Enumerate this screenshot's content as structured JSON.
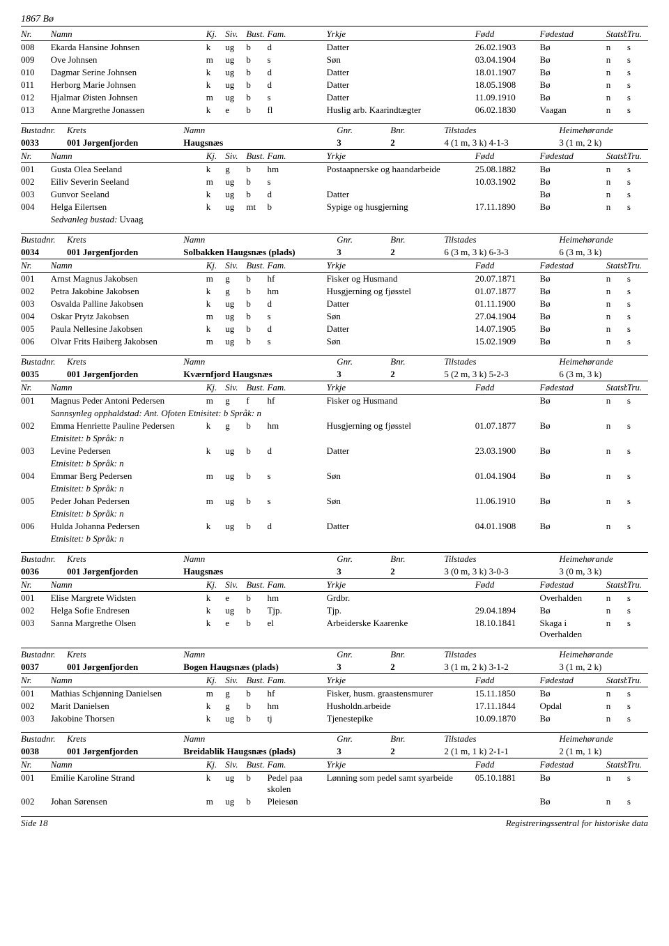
{
  "title": "1867 Bø",
  "footer_left": "Side 18",
  "footer_right": "Registreringssentral for historiske data",
  "colhead": {
    "nr": "Nr.",
    "namn": "Namn",
    "kj": "Kj.",
    "siv": "Siv.",
    "bust": "Bust.",
    "fam": "Fam.",
    "yrkje": "Yrkje",
    "fodd": "Fødd",
    "fodestad": "Fødestad",
    "statsb": "Statsb.",
    "tru": "Tru."
  },
  "busthead": {
    "bustadnr": "Bustadnr.",
    "krets": "Krets",
    "namn": "Namn",
    "gnr": "Gnr.",
    "bnr": "Bnr.",
    "tilstades": "Tilstades",
    "heimehor": "Heimehørande"
  },
  "top_rows": [
    {
      "nr": "008",
      "namn": "Ekarda Hansine Johnsen",
      "kj": "k",
      "siv": "ug",
      "bust": "b",
      "fam": "d",
      "yrkje": "Datter",
      "fodd": "26.02.1903",
      "fstad": "Bø",
      "stat": "n",
      "tru": "s"
    },
    {
      "nr": "009",
      "namn": "Ove Johnsen",
      "kj": "m",
      "siv": "ug",
      "bust": "b",
      "fam": "s",
      "yrkje": "Søn",
      "fodd": "03.04.1904",
      "fstad": "Bø",
      "stat": "n",
      "tru": "s"
    },
    {
      "nr": "010",
      "namn": "Dagmar Serine Johnsen",
      "kj": "k",
      "siv": "ug",
      "bust": "b",
      "fam": "d",
      "yrkje": "Datter",
      "fodd": "18.01.1907",
      "fstad": "Bø",
      "stat": "n",
      "tru": "s"
    },
    {
      "nr": "011",
      "namn": "Herborg Marie Johnsen",
      "kj": "k",
      "siv": "ug",
      "bust": "b",
      "fam": "d",
      "yrkje": "Datter",
      "fodd": "18.05.1908",
      "fstad": "Bø",
      "stat": "n",
      "tru": "s"
    },
    {
      "nr": "012",
      "namn": "Hjalmar Øisten Johnsen",
      "kj": "m",
      "siv": "ug",
      "bust": "b",
      "fam": "s",
      "yrkje": "Datter",
      "fodd": "11.09.1910",
      "fstad": "Bø",
      "stat": "n",
      "tru": "s"
    },
    {
      "nr": "013",
      "namn": "Anne Margrethe Jonassen",
      "kj": "k",
      "siv": "e",
      "bust": "b",
      "fam": "fl",
      "yrkje": "Huslig arb. Kaarindtægter",
      "fodd": "06.02.1830",
      "fstad": "Vaagan",
      "stat": "n",
      "tru": "s"
    }
  ],
  "blocks": [
    {
      "bust": {
        "nr": "0033",
        "krets": "001 Jørgenfjorden",
        "namn": "Haugsnæs",
        "gnr": "3",
        "bnr": "2",
        "til": "4 (1 m, 3 k) 4-1-3",
        "heim": "3 (1 m, 2 k)"
      },
      "rows": [
        {
          "nr": "001",
          "namn": "Gusta Olea Seeland",
          "kj": "k",
          "siv": "g",
          "bust": "b",
          "fam": "hm",
          "yrkje": "Postaapnerske og haandarbeide",
          "fodd": "25.08.1882",
          "fstad": "Bø",
          "stat": "n",
          "tru": "s"
        },
        {
          "nr": "002",
          "namn": "Eiliv Severin Seeland",
          "kj": "m",
          "siv": "ug",
          "bust": "b",
          "fam": "s",
          "yrkje": "",
          "fodd": "10.03.1902",
          "fstad": "Bø",
          "stat": "n",
          "tru": "s"
        },
        {
          "nr": "003",
          "namn": "Gunvor Seeland",
          "kj": "k",
          "siv": "ug",
          "bust": "b",
          "fam": "d",
          "yrkje": "Datter",
          "fodd": "",
          "fstad": "Bø",
          "stat": "n",
          "tru": "s"
        },
        {
          "nr": "004",
          "namn": "Helga Eilertsen",
          "kj": "k",
          "siv": "ug",
          "bust": "mt",
          "fam": "b",
          "yrkje": "Sypige og husgjerning",
          "fodd": "17.11.1890",
          "fstad": "Bø",
          "stat": "n",
          "tru": "s",
          "extra_label": "Sedvanleg bustad:",
          "extra_val": "Uvaag"
        }
      ]
    },
    {
      "bust": {
        "nr": "0034",
        "krets": "001 Jørgenfjorden",
        "namn": "Solbakken Haugsnæs (plads)",
        "gnr": "3",
        "bnr": "2",
        "til": "6 (3 m, 3 k) 6-3-3",
        "heim": "6 (3 m, 3 k)"
      },
      "rows": [
        {
          "nr": "001",
          "namn": "Arnst Magnus Jakobsen",
          "kj": "m",
          "siv": "g",
          "bust": "b",
          "fam": "hf",
          "yrkje": "Fisker og Husmand",
          "fodd": "20.07.1871",
          "fstad": "Bø",
          "stat": "n",
          "tru": "s"
        },
        {
          "nr": "002",
          "namn": "Petra Jakobine Jakobsen",
          "kj": "k",
          "siv": "g",
          "bust": "b",
          "fam": "hm",
          "yrkje": "Husgjerning og fjøsstel",
          "fodd": "01.07.1877",
          "fstad": "Bø",
          "stat": "n",
          "tru": "s"
        },
        {
          "nr": "003",
          "namn": "Osvalda Palline Jakobsen",
          "kj": "k",
          "siv": "ug",
          "bust": "b",
          "fam": "d",
          "yrkje": "Datter",
          "fodd": "01.11.1900",
          "fstad": "Bø",
          "stat": "n",
          "tru": "s"
        },
        {
          "nr": "004",
          "namn": "Oskar Prytz Jakobsen",
          "kj": "m",
          "siv": "ug",
          "bust": "b",
          "fam": "s",
          "yrkje": "Søn",
          "fodd": "27.04.1904",
          "fstad": "Bø",
          "stat": "n",
          "tru": "s"
        },
        {
          "nr": "005",
          "namn": "Paula Nellesine Jakobsen",
          "kj": "k",
          "siv": "ug",
          "bust": "b",
          "fam": "d",
          "yrkje": "Datter",
          "fodd": "14.07.1905",
          "fstad": "Bø",
          "stat": "n",
          "tru": "s"
        },
        {
          "nr": "006",
          "namn": "Olvar Frits Høiberg Jakobsen",
          "kj": "m",
          "siv": "ug",
          "bust": "b",
          "fam": "s",
          "yrkje": "Søn",
          "fodd": "15.02.1909",
          "fstad": "Bø",
          "stat": "n",
          "tru": "s"
        }
      ]
    },
    {
      "bust": {
        "nr": "0035",
        "krets": "001 Jørgenfjorden",
        "namn": "Kværnfjord Haugsnæs",
        "gnr": "3",
        "bnr": "2",
        "til": "5 (2 m, 3 k) 5-2-3",
        "heim": "6 (3 m, 3 k)"
      },
      "rows": [
        {
          "nr": "001",
          "namn": "Magnus Peder Antoni Pedersen",
          "kj": "m",
          "siv": "g",
          "bust": "f",
          "fam": "hf",
          "yrkje": "Fisker og Husmand",
          "fodd": "",
          "fstad": "Bø",
          "stat": "n",
          "tru": "s",
          "extra_full": "Sannsynleg opphaldstad: Ant. Ofoten Etnisitet: b  Språk: n"
        },
        {
          "nr": "002",
          "namn": "Emma Henriette Pauline Pedersen",
          "kj": "k",
          "siv": "g",
          "bust": "b",
          "fam": "hm",
          "yrkje": "Husgjerning og fjøsstel",
          "fodd": "01.07.1877",
          "fstad": "Bø",
          "stat": "n",
          "tru": "s",
          "extra_full": "Etnisitet: b  Språk: n"
        },
        {
          "nr": "003",
          "namn": "Levine Pedersen",
          "kj": "k",
          "siv": "ug",
          "bust": "b",
          "fam": "d",
          "yrkje": "Datter",
          "fodd": "23.03.1900",
          "fstad": "Bø",
          "stat": "n",
          "tru": "s",
          "extra_full": "Etnisitet: b  Språk: n"
        },
        {
          "nr": "004",
          "namn": "Emmar Berg Pedersen",
          "kj": "m",
          "siv": "ug",
          "bust": "b",
          "fam": "s",
          "yrkje": "Søn",
          "fodd": "01.04.1904",
          "fstad": "Bø",
          "stat": "n",
          "tru": "s",
          "extra_full": "Etnisitet: b  Språk: n"
        },
        {
          "nr": "005",
          "namn": "Peder Johan Pedersen",
          "kj": "m",
          "siv": "ug",
          "bust": "b",
          "fam": "s",
          "yrkje": "Søn",
          "fodd": "11.06.1910",
          "fstad": "Bø",
          "stat": "n",
          "tru": "s",
          "extra_full": "Etnisitet: b  Språk: n"
        },
        {
          "nr": "006",
          "namn": "Hulda Johanna Pedersen",
          "kj": "k",
          "siv": "ug",
          "bust": "b",
          "fam": "d",
          "yrkje": "Datter",
          "fodd": "04.01.1908",
          "fstad": "Bø",
          "stat": "n",
          "tru": "s",
          "extra_full": "Etnisitet: b  Språk: n"
        }
      ]
    },
    {
      "bust": {
        "nr": "0036",
        "krets": "001 Jørgenfjorden",
        "namn": "Haugsnæs",
        "gnr": "3",
        "bnr": "2",
        "til": "3 (0 m, 3 k) 3-0-3",
        "heim": "3 (0 m, 3 k)"
      },
      "rows": [
        {
          "nr": "001",
          "namn": "Elise Margrete Widsten",
          "kj": "k",
          "siv": "e",
          "bust": "b",
          "fam": "hm",
          "yrkje": "Grdbr.",
          "fodd": "",
          "fstad": "Overhalden",
          "stat": "n",
          "tru": "s"
        },
        {
          "nr": "002",
          "namn": "Helga Sofie Endresen",
          "kj": "k",
          "siv": "ug",
          "bust": "b",
          "fam": "Tjp.",
          "yrkje": "Tjp.",
          "fodd": "29.04.1894",
          "fstad": "Bø",
          "stat": "n",
          "tru": "s"
        },
        {
          "nr": "003",
          "namn": "Sanna Margrethe Olsen",
          "kj": "k",
          "siv": "e",
          "bust": "b",
          "fam": "el",
          "yrkje": "Arbeiderske Kaarenke",
          "fodd": "18.10.1841",
          "fstad": "Skaga i Overhalden",
          "stat": "n",
          "tru": "s"
        }
      ]
    },
    {
      "bust": {
        "nr": "0037",
        "krets": "001 Jørgenfjorden",
        "namn": "Bogen Haugsnæs (plads)",
        "gnr": "3",
        "bnr": "2",
        "til": "3 (1 m, 2 k) 3-1-2",
        "heim": "3 (1 m, 2 k)"
      },
      "rows": [
        {
          "nr": "001",
          "namn": "Mathias Schjønning Danielsen",
          "kj": "m",
          "siv": "g",
          "bust": "b",
          "fam": "hf",
          "yrkje": "Fisker, husm. graastensmurer",
          "fodd": "15.11.1850",
          "fstad": "Bø",
          "stat": "n",
          "tru": "s"
        },
        {
          "nr": "002",
          "namn": "Marit Danielsen",
          "kj": "k",
          "siv": "g",
          "bust": "b",
          "fam": "hm",
          "yrkje": "Husholdn.arbeide",
          "fodd": "17.11.1844",
          "fstad": "Opdal",
          "stat": "n",
          "tru": "s"
        },
        {
          "nr": "003",
          "namn": "Jakobine Thorsen",
          "kj": "k",
          "siv": "ug",
          "bust": "b",
          "fam": "tj",
          "yrkje": "Tjenestepike",
          "fodd": "10.09.1870",
          "fstad": "Bø",
          "stat": "n",
          "tru": "s"
        }
      ]
    },
    {
      "bust": {
        "nr": "0038",
        "krets": "001 Jørgenfjorden",
        "namn": "Breidablik Haugsnæs (plads)",
        "gnr": "3",
        "bnr": "2",
        "til": "2 (1 m, 1 k) 2-1-1",
        "heim": "2 (1 m, 1 k)"
      },
      "rows": [
        {
          "nr": "001",
          "namn": "Emilie Karoline Strand",
          "kj": "k",
          "siv": "ug",
          "bust": "b",
          "fam": "Pedel paa skolen",
          "yrkje": "Lønning som pedel samt syarbeide",
          "fodd": "05.10.1881",
          "fstad": "Bø",
          "stat": "n",
          "tru": "s"
        },
        {
          "nr": "002",
          "namn": "Johan Sørensen",
          "kj": "m",
          "siv": "ug",
          "bust": "b",
          "fam": "Pleiesøn",
          "yrkje": "",
          "fodd": "",
          "fstad": "Bø",
          "stat": "n",
          "tru": "s"
        }
      ]
    }
  ]
}
